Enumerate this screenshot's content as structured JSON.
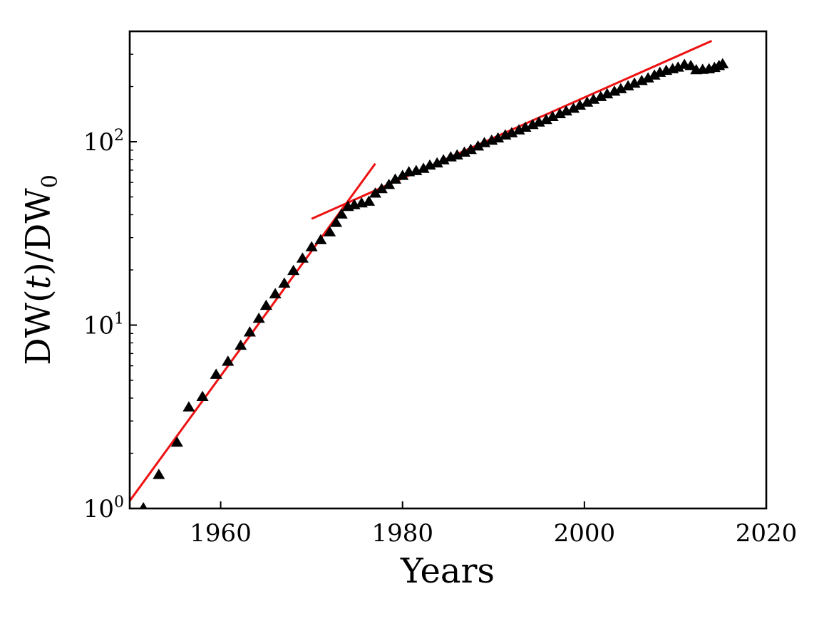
{
  "chart_data": {
    "type": "scatter",
    "title": "",
    "xlabel": "Years",
    "ylabel": "DW(t)/DW0",
    "ylabel_parts": {
      "main": "DW(",
      "var": "t",
      "mid": ")/DW",
      "sub": "0"
    },
    "yscale": "log",
    "xlim": [
      1950,
      2020
    ],
    "ylim": [
      1.0,
      400
    ],
    "x_ticks": [
      {
        "value": 1960,
        "label": "1960"
      },
      {
        "value": 1980,
        "label": "1980"
      },
      {
        "value": 2000,
        "label": "2000"
      },
      {
        "value": 2020,
        "label": "2020"
      }
    ],
    "y_ticks": [
      {
        "value": 1,
        "base": "10",
        "exp": "0"
      },
      {
        "value": 10,
        "base": "10",
        "exp": "1"
      },
      {
        "value": 100,
        "base": "10",
        "exp": "2"
      }
    ],
    "marker_color": "#000000",
    "fit_color": "#ee1111",
    "series": [
      {
        "name": "DW(t)/DW0",
        "marker": "triangle",
        "points": [
          [
            1951.5,
            1.0
          ],
          [
            1953.2,
            1.52
          ],
          [
            1955.2,
            2.28
          ],
          [
            1956.5,
            3.55
          ],
          [
            1958.0,
            4.05
          ],
          [
            1959.5,
            5.35
          ],
          [
            1960.8,
            6.3
          ],
          [
            1962.2,
            7.7
          ],
          [
            1963.2,
            9.1
          ],
          [
            1964.2,
            10.8
          ],
          [
            1965.0,
            12.7
          ],
          [
            1966.0,
            14.7
          ],
          [
            1967.0,
            16.8
          ],
          [
            1968.0,
            19.7
          ],
          [
            1969.0,
            23.0
          ],
          [
            1970.0,
            26.5
          ],
          [
            1971.0,
            29.0
          ],
          [
            1972.0,
            32.0
          ],
          [
            1972.7,
            36.0
          ],
          [
            1973.3,
            40.0
          ],
          [
            1974.0,
            44.0
          ],
          [
            1974.7,
            45.0
          ],
          [
            1975.5,
            46.0
          ],
          [
            1976.3,
            47.0
          ],
          [
            1977.0,
            52.0
          ],
          [
            1977.7,
            55.0
          ],
          [
            1978.5,
            58.0
          ],
          [
            1979.2,
            62.0
          ],
          [
            1980.0,
            65.0
          ],
          [
            1980.7,
            68.0
          ],
          [
            1981.5,
            69.0
          ],
          [
            1982.3,
            71.0
          ],
          [
            1983.0,
            74.0
          ],
          [
            1983.8,
            76.0
          ],
          [
            1984.5,
            79.0
          ],
          [
            1985.3,
            82.0
          ],
          [
            1986.0,
            84.0
          ],
          [
            1986.8,
            87.0
          ],
          [
            1987.5,
            90.0
          ],
          [
            1988.3,
            94.0
          ],
          [
            1989.0,
            98.0
          ],
          [
            1989.8,
            101.0
          ],
          [
            1990.5,
            104.0
          ],
          [
            1991.3,
            108.0
          ],
          [
            1992.0,
            111.0
          ],
          [
            1992.8,
            115.0
          ],
          [
            1993.5,
            119.0
          ],
          [
            1994.3,
            123.0
          ],
          [
            1995.0,
            127.0
          ],
          [
            1995.8,
            131.0
          ],
          [
            1996.5,
            136.0
          ],
          [
            1997.3,
            141.0
          ],
          [
            1998.0,
            146.0
          ],
          [
            1998.8,
            151.0
          ],
          [
            1999.5,
            157.0
          ],
          [
            2000.3,
            163.0
          ],
          [
            2001.0,
            169.0
          ],
          [
            2001.8,
            175.0
          ],
          [
            2002.5,
            181.0
          ],
          [
            2003.3,
            187.0
          ],
          [
            2004.0,
            193.0
          ],
          [
            2004.8,
            200.0
          ],
          [
            2005.5,
            207.0
          ],
          [
            2006.3,
            214.0
          ],
          [
            2007.0,
            221.0
          ],
          [
            2007.7,
            229.0
          ],
          [
            2008.3,
            237.0
          ],
          [
            2009.0,
            243.0
          ],
          [
            2009.7,
            248.0
          ],
          [
            2010.3,
            253.0
          ],
          [
            2011.0,
            262.0
          ],
          [
            2011.7,
            258.0
          ],
          [
            2012.3,
            245.0
          ],
          [
            2013.0,
            246.0
          ],
          [
            2013.7,
            248.0
          ],
          [
            2014.3,
            252.0
          ],
          [
            2014.8,
            258.0
          ],
          [
            2015.2,
            264.0
          ]
        ]
      }
    ],
    "fit_lines": [
      {
        "name": "fit-early",
        "x": [
          1950,
          1977
        ],
        "y": [
          1.1,
          76
        ]
      },
      {
        "name": "fit-late",
        "x": [
          1970,
          2014
        ],
        "y": [
          38,
          355
        ]
      }
    ]
  }
}
